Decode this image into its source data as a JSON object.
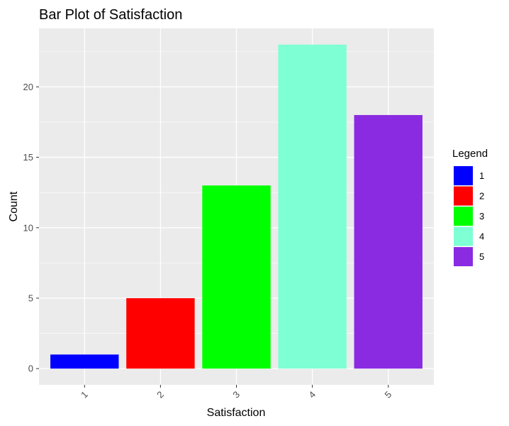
{
  "chart_data": {
    "type": "bar",
    "title": "Bar Plot of Satisfaction",
    "xlabel": "Satisfaction",
    "ylabel": "Count",
    "categories": [
      "1",
      "2",
      "3",
      "4",
      "5"
    ],
    "values": [
      1,
      5,
      13,
      23,
      18
    ],
    "colors": [
      "#0000FF",
      "#FF0000",
      "#00FF00",
      "#7FFFD4",
      "#8A2BE2"
    ],
    "yticks": [
      0,
      5,
      10,
      15,
      20
    ],
    "ylim": [
      -1.15,
      24.15
    ],
    "grid": true,
    "x_tick_rotation": "rotated 45 degrees",
    "legend": {
      "title": "Legend",
      "placement": "right",
      "entries": [
        "1",
        "2",
        "3",
        "4",
        "5"
      ]
    }
  }
}
